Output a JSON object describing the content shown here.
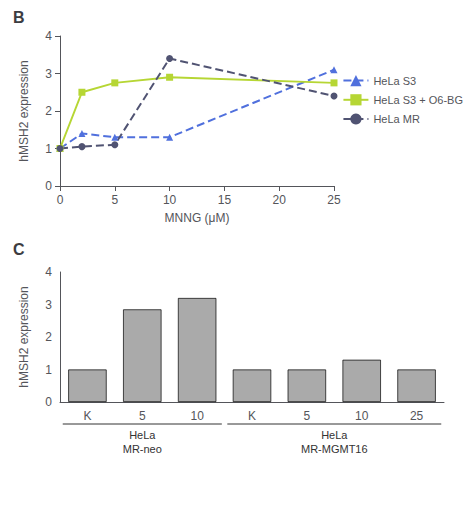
{
  "chart_data": [
    {
      "type": "line",
      "title": "B",
      "xlabel": "MNNG (μM)",
      "ylabel": "hMSH2 expression",
      "x": [
        0,
        2,
        5,
        10,
        25
      ],
      "series": [
        {
          "name": "HeLa S3",
          "values": [
            1.0,
            1.4,
            1.3,
            1.3,
            3.1
          ],
          "marker": "triangle",
          "line_style": "dashed"
        },
        {
          "name": "HeLa S3 + O6-BG",
          "values": [
            1.0,
            2.5,
            2.75,
            2.9,
            2.75
          ],
          "marker": "square",
          "line_style": "solid"
        },
        {
          "name": "HeLa MR",
          "values": [
            1.0,
            1.05,
            1.1,
            3.4,
            2.4
          ],
          "marker": "circle",
          "line_style": "dashed"
        }
      ],
      "xlim": [
        0,
        25
      ],
      "xticks": [
        0,
        5,
        10,
        15,
        20,
        25
      ],
      "ylim": [
        0,
        4
      ],
      "yticks": [
        0,
        1,
        2,
        3,
        4
      ],
      "grid": false,
      "legend": "right"
    },
    {
      "type": "bar",
      "title": "C",
      "ylabel": "hMSH2 expression",
      "categories": [
        "K",
        "5",
        "10",
        "K",
        "5",
        "10",
        "25"
      ],
      "values": [
        1.0,
        2.85,
        3.2,
        1.0,
        1.0,
        1.3,
        1.0
      ],
      "color": "#aaaaaa",
      "ylim": [
        0,
        4
      ],
      "yticks": [
        0,
        1,
        2,
        3,
        4
      ],
      "grid": false,
      "annotations": [
        "HeLa",
        "MR-neo",
        "HeLa",
        "MR-MGMT16"
      ]
    }
  ]
}
